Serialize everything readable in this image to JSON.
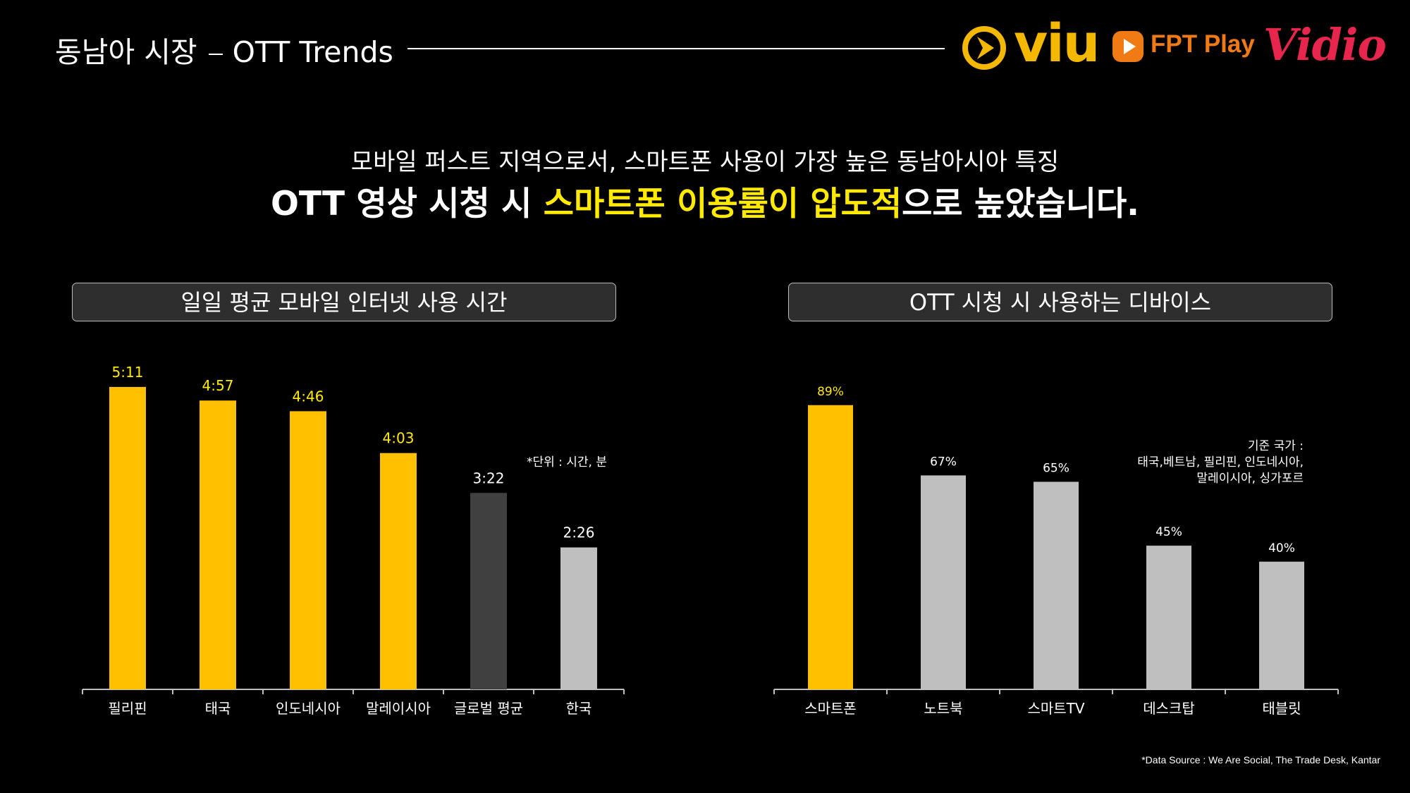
{
  "header": {
    "title_ko": "동남아 시장",
    "title_en": "OTT Trends"
  },
  "logos": {
    "viu": "viu",
    "fpt": "FPT Play",
    "vidio": "Vidio"
  },
  "headline": {
    "line1": "모바일 퍼스트 지역으로서, 스마트폰 사용이 가장 높은 동남아시아 특징",
    "line2_pre": "OTT 영상 시청 시 ",
    "line2_highlight": "스마트폰 이용률이 압도적",
    "line2_post": "으로 높았습니다."
  },
  "colors": {
    "accent_yellow": "#ffc000",
    "highlight_yellow": "#ffea00",
    "gray_bar": "#bfbfbf",
    "dark_bar": "#404040"
  },
  "chart_data": [
    {
      "type": "bar",
      "title": "일일 평균 모바일 인터넷 사용 시간",
      "unit_note": "*단위 : 시간, 분",
      "categories": [
        "필리핀",
        "태국",
        "인도네시아",
        "말레이시아",
        "글로벌 평균",
        "한국"
      ],
      "values": [
        5.183,
        4.95,
        4.767,
        4.05,
        3.367,
        2.433
      ],
      "labels": [
        "5:11",
        "4:57",
        "4:46",
        "4:03",
        "3:22",
        "2:26"
      ],
      "bar_colors": [
        "#ffc000",
        "#ffc000",
        "#ffc000",
        "#ffc000",
        "#404040",
        "#bfbfbf"
      ],
      "label_colors": [
        "#ffea00",
        "#ffea00",
        "#ffea00",
        "#ffea00",
        "#ffffff",
        "#ffffff"
      ],
      "ylim": [
        0,
        5.75
      ]
    },
    {
      "type": "bar",
      "title": "OTT 시청 시 사용하는 디바이스",
      "note_lines": [
        "기준 국가 :",
        "태국,베트남, 필리핀, 인도네시아,",
        "말레이시아, 싱가포르"
      ],
      "categories": [
        "스마트폰",
        "노트북",
        "스마트TV",
        "데스크탑",
        "태블릿"
      ],
      "values": [
        89,
        67,
        65,
        45,
        40
      ],
      "labels": [
        "89%",
        "67%",
        "65%",
        "45%",
        "40%"
      ],
      "bar_colors": [
        "#ffc000",
        "#bfbfbf",
        "#bfbfbf",
        "#bfbfbf",
        "#bfbfbf"
      ],
      "label_colors": [
        "#ffea00",
        "#ffffff",
        "#ffffff",
        "#ffffff",
        "#ffffff"
      ],
      "ylim": [
        0,
        98
      ]
    }
  ],
  "source": "*Data Source : We Are Social, The Trade Desk, Kantar"
}
